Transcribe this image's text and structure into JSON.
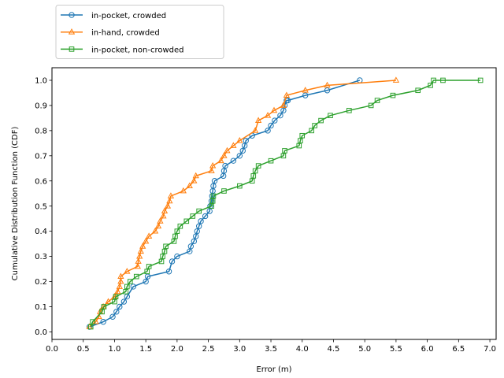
{
  "chart_data": {
    "type": "line",
    "xlabel": "Error (m)",
    "ylabel": "Cumulative Distribution Function (CDF)",
    "xlim": [
      0.0,
      7.1
    ],
    "ylim": [
      -0.03,
      1.05
    ],
    "xticks": [
      0.0,
      0.5,
      1.0,
      1.5,
      2.0,
      2.5,
      3.0,
      3.5,
      4.0,
      4.5,
      5.0,
      5.5,
      6.0,
      6.5,
      7.0
    ],
    "xtick_labels": [
      "0.0",
      "0.5",
      "1.0",
      "1.5",
      "2.0",
      "2.5",
      "3.0",
      "3.5",
      "4.0",
      "4.5",
      "5.0",
      "5.5",
      "6.0",
      "6.5",
      "7.0"
    ],
    "yticks": [
      0.0,
      0.1,
      0.2,
      0.3,
      0.4,
      0.5,
      0.6,
      0.7,
      0.8,
      0.9,
      1.0
    ],
    "ytick_labels": [
      "0.0",
      "0.1",
      "0.2",
      "0.3",
      "0.4",
      "0.5",
      "0.6",
      "0.7",
      "0.8",
      "0.9",
      "1.0"
    ],
    "grid": false,
    "legend_position": "top-left, outside above the plot",
    "series": [
      {
        "name": "in-pocket, crowded",
        "color": "#1f77b4",
        "marker": "circle",
        "x": [
          0.6,
          0.82,
          0.97,
          1.03,
          1.08,
          1.15,
          1.2,
          1.3,
          1.5,
          1.53,
          1.87,
          1.92,
          2.0,
          2.2,
          2.22,
          2.27,
          2.3,
          2.32,
          2.35,
          2.38,
          2.45,
          2.52,
          2.53,
          2.55,
          2.56,
          2.57,
          2.58,
          2.6,
          2.74,
          2.75,
          2.77,
          2.9,
          3.0,
          3.05,
          3.08,
          3.1,
          3.2,
          3.45,
          3.5,
          3.56,
          3.65,
          3.7,
          3.72,
          3.75,
          3.77,
          4.05,
          4.4,
          4.92
        ],
        "y": [
          0.02,
          0.04,
          0.06,
          0.08,
          0.1,
          0.12,
          0.14,
          0.18,
          0.2,
          0.22,
          0.24,
          0.28,
          0.3,
          0.32,
          0.34,
          0.36,
          0.38,
          0.4,
          0.42,
          0.44,
          0.46,
          0.48,
          0.5,
          0.52,
          0.54,
          0.56,
          0.58,
          0.6,
          0.62,
          0.64,
          0.66,
          0.68,
          0.7,
          0.72,
          0.74,
          0.76,
          0.78,
          0.8,
          0.82,
          0.84,
          0.86,
          0.88,
          0.9,
          0.92,
          0.92,
          0.94,
          0.96,
          1.0
        ]
      },
      {
        "name": "in-hand, crowded",
        "color": "#ff7f0e",
        "marker": "triangle",
        "x": [
          0.6,
          0.7,
          0.75,
          0.77,
          0.82,
          0.9,
          1.0,
          1.05,
          1.08,
          1.1,
          1.1,
          1.2,
          1.37,
          1.38,
          1.4,
          1.42,
          1.45,
          1.5,
          1.55,
          1.65,
          1.7,
          1.73,
          1.78,
          1.8,
          1.85,
          1.88,
          1.9,
          2.1,
          2.2,
          2.27,
          2.3,
          2.55,
          2.57,
          2.7,
          2.75,
          2.8,
          2.9,
          3.0,
          3.25,
          3.3,
          3.45,
          3.55,
          3.7,
          3.75,
          4.05,
          4.4,
          5.5
        ],
        "y": [
          0.02,
          0.04,
          0.06,
          0.08,
          0.1,
          0.12,
          0.14,
          0.16,
          0.18,
          0.2,
          0.22,
          0.24,
          0.26,
          0.28,
          0.3,
          0.32,
          0.34,
          0.36,
          0.38,
          0.4,
          0.42,
          0.44,
          0.46,
          0.48,
          0.5,
          0.52,
          0.54,
          0.56,
          0.58,
          0.6,
          0.62,
          0.64,
          0.66,
          0.68,
          0.7,
          0.72,
          0.74,
          0.76,
          0.8,
          0.84,
          0.86,
          0.88,
          0.9,
          0.94,
          0.96,
          0.98,
          1.0
        ]
      },
      {
        "name": "in-pocket, non-crowded",
        "color": "#2ca02c",
        "marker": "square",
        "x": [
          0.62,
          0.65,
          0.8,
          0.83,
          1.0,
          1.02,
          1.18,
          1.2,
          1.25,
          1.35,
          1.52,
          1.55,
          1.75,
          1.77,
          1.8,
          1.82,
          1.95,
          1.97,
          2.0,
          2.05,
          2.15,
          2.25,
          2.35,
          2.55,
          2.57,
          2.58,
          2.75,
          3.0,
          3.2,
          3.22,
          3.25,
          3.3,
          3.5,
          3.7,
          3.72,
          3.95,
          3.97,
          4.0,
          4.15,
          4.2,
          4.3,
          4.45,
          4.75,
          5.1,
          5.2,
          5.45,
          5.85,
          6.05,
          6.1,
          6.25,
          6.85
        ],
        "y": [
          0.02,
          0.04,
          0.08,
          0.1,
          0.12,
          0.14,
          0.16,
          0.18,
          0.2,
          0.22,
          0.24,
          0.26,
          0.28,
          0.3,
          0.32,
          0.34,
          0.36,
          0.38,
          0.4,
          0.42,
          0.44,
          0.46,
          0.48,
          0.5,
          0.52,
          0.54,
          0.56,
          0.58,
          0.6,
          0.62,
          0.64,
          0.66,
          0.68,
          0.7,
          0.72,
          0.74,
          0.76,
          0.78,
          0.8,
          0.82,
          0.84,
          0.86,
          0.88,
          0.9,
          0.92,
          0.94,
          0.96,
          0.98,
          1.0,
          1.0,
          1.0
        ]
      }
    ]
  }
}
